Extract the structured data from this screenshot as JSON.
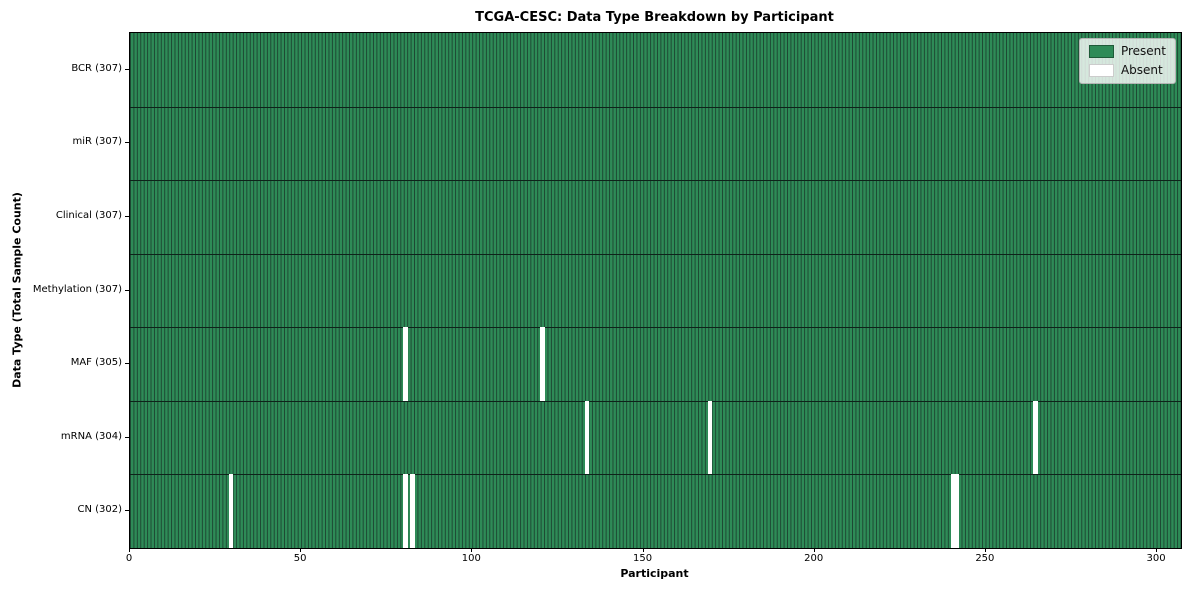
{
  "title": "TCGA-CESC: Data Type Breakdown by Participant",
  "colors": {
    "present": "#2e8b57",
    "absent": "#ffffff",
    "cell_edge": "#1d4833",
    "row_separator": "#0e231a",
    "spine": "#000000"
  },
  "legend": {
    "position": "upper right",
    "entries": [
      {
        "label": "Present",
        "color": "#2e8b57",
        "edge": "rgba(0,0,0,0.35)"
      },
      {
        "label": "Absent",
        "color": "#ffffff",
        "edge": "#cccccc"
      }
    ]
  },
  "chart_data": {
    "type": "heatmap",
    "title": "TCGA-CESC: Data Type Breakdown by Participant",
    "xlabel": "Participant",
    "ylabel": "Data Type (Total Sample Count)",
    "x_range": [
      0,
      307
    ],
    "x_ticks": [
      0,
      50,
      100,
      150,
      200,
      250,
      300
    ],
    "n_participants": 307,
    "grid": false,
    "legend_position": "upper right",
    "rows": [
      {
        "data_type": "BCR",
        "label": "BCR (307)",
        "present_count": 307,
        "absent_participants": []
      },
      {
        "data_type": "miR",
        "label": "miR (307)",
        "present_count": 307,
        "absent_participants": []
      },
      {
        "data_type": "Clinical",
        "label": "Clinical (307)",
        "present_count": 307,
        "absent_participants": []
      },
      {
        "data_type": "Methylation",
        "label": "Methylation (307)",
        "present_count": 307,
        "absent_participants": []
      },
      {
        "data_type": "MAF",
        "label": "MAF (305)",
        "present_count": 305,
        "absent_participants": [
          80,
          120
        ]
      },
      {
        "data_type": "mRNA",
        "label": "mRNA (304)",
        "present_count": 304,
        "absent_participants": [
          133,
          169,
          264
        ]
      },
      {
        "data_type": "CN",
        "label": "CN (302)",
        "present_count": 302,
        "absent_participants": [
          29,
          80,
          82,
          240,
          241
        ]
      }
    ]
  }
}
